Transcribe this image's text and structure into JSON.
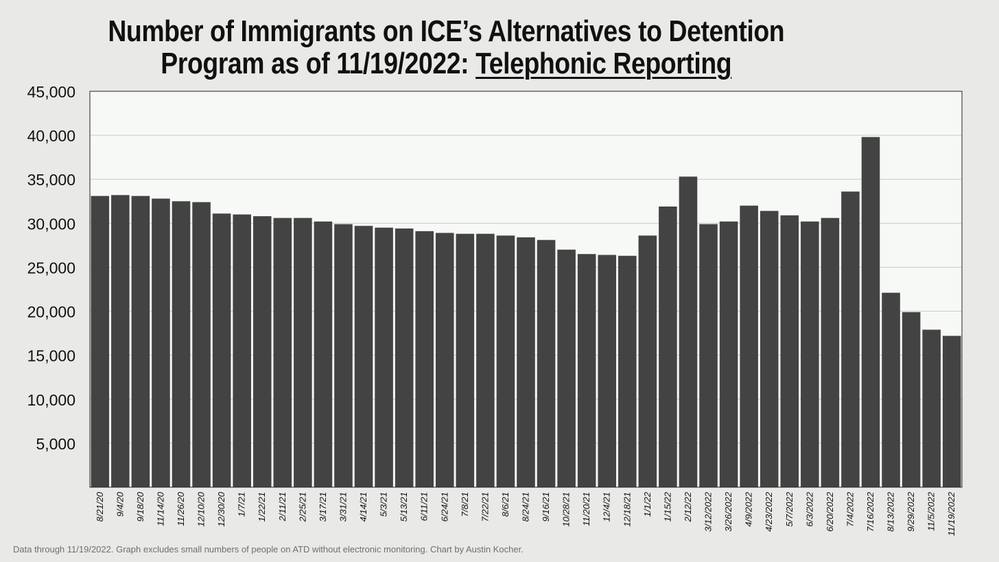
{
  "title": {
    "line1": "Number of Immigrants on ICE’s Alternatives to Detention",
    "line2_prefix": "Program as of 11/19/2022: ",
    "line2_underlined": "Telephonic Reporting"
  },
  "footnote": "Data through 11/19/2022. Graph excludes small numbers of people on ATD without electronic monitoring. Chart by Austin Kocher.",
  "colors": {
    "bar": "#434343",
    "plot_background": "#f7f9f6",
    "page_background": "#e9eae7",
    "gridline": "#c9cbc8"
  },
  "chart_data": {
    "type": "bar",
    "title": "Number of Immigrants on ICE’s Alternatives to Detention Program as of 11/19/2022: Telephonic Reporting",
    "xlabel": "",
    "ylabel": "",
    "ylim": [
      0,
      45000
    ],
    "yticks": [
      5000,
      10000,
      15000,
      20000,
      25000,
      30000,
      35000,
      40000,
      45000
    ],
    "ytick_labels": [
      "5,000",
      "10,000",
      "15,000",
      "20,000",
      "25,000",
      "30,000",
      "35,000",
      "40,000",
      "45,000"
    ],
    "grid": true,
    "legend": "none",
    "categories": [
      "8/21/20",
      "9/4/20",
      "9/18/20",
      "11/14/20",
      "11/26/20",
      "12/10/20",
      "12/30/20",
      "1/7/21",
      "1/22/21",
      "2/11/21",
      "2/25/21",
      "3/17/21",
      "3/31/21",
      "4/14/21",
      "5/3/21",
      "5/13/21",
      "6/11/21",
      "6/24/21",
      "7/8/21",
      "7/22/21",
      "8/6/21",
      "8/24/21",
      "9/16/21",
      "10/28/21",
      "11/20/21",
      "12/4/21",
      "12/18/21",
      "1/1/22",
      "1/15/22",
      "2/12/22",
      "3/12/2022",
      "3/26/2022",
      "4/9/2022",
      "4/23/2022",
      "5/7/2022",
      "6/3/2022",
      "6/20/2022",
      "7/4/2022",
      "7/16/2022",
      "8/13/2022",
      "9/29/2022",
      "11/5/2022",
      "11/19/2022"
    ],
    "values": [
      33100,
      33200,
      33100,
      32800,
      32500,
      32400,
      31100,
      31000,
      30800,
      30600,
      30600,
      30200,
      29900,
      29700,
      29500,
      29400,
      29100,
      28900,
      28800,
      28800,
      28600,
      28400,
      28100,
      27000,
      26500,
      26400,
      26300,
      28600,
      31900,
      35300,
      29900,
      30200,
      32000,
      31400,
      30900,
      30200,
      30600,
      33600,
      39800,
      22100,
      19900,
      17900,
      17200
    ]
  }
}
